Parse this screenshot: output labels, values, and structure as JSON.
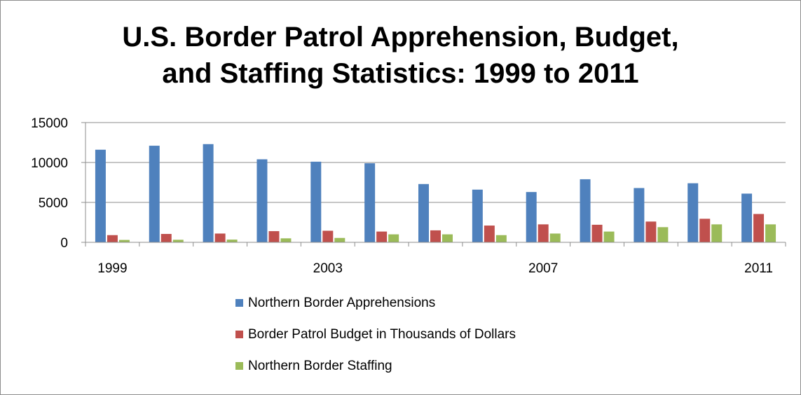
{
  "chart_data": {
    "type": "bar",
    "title": [
      "U.S. Border Patrol Apprehension, Budget,",
      "and Staffing Statistics: 1999 to 2011"
    ],
    "categories": [
      "1999",
      "2000",
      "2001",
      "2002",
      "2003",
      "2004",
      "2005",
      "2006",
      "2007",
      "2008",
      "2009",
      "2010",
      "2011"
    ],
    "x_tick_labels": [
      "1999",
      "",
      "",
      "",
      "2003",
      "",
      "",
      "",
      "2007",
      "",
      "",
      "",
      "2011"
    ],
    "y_ticks": [
      "0",
      "5000",
      "10000",
      "15000"
    ],
    "ylim": [
      0,
      15000
    ],
    "grid": true,
    "legend_position": "bottom",
    "series": [
      {
        "name": "Northern Border Apprehensions",
        "color": "#4f81bd",
        "values": [
          11600,
          12100,
          12300,
          10400,
          10100,
          9900,
          7300,
          6600,
          6300,
          7900,
          6800,
          7400,
          6100
        ]
      },
      {
        "name": "Border Patrol Budget in Thousands of Dollars",
        "color": "#c0504d",
        "values": [
          900,
          1050,
          1100,
          1400,
          1450,
          1350,
          1500,
          2100,
          2250,
          2200,
          2600,
          2950,
          3550
        ]
      },
      {
        "name": "Northern Border Staffing",
        "color": "#9bbb59",
        "values": [
          300,
          320,
          340,
          500,
          550,
          1000,
          1000,
          900,
          1100,
          1350,
          1900,
          2250,
          2250
        ]
      }
    ]
  }
}
